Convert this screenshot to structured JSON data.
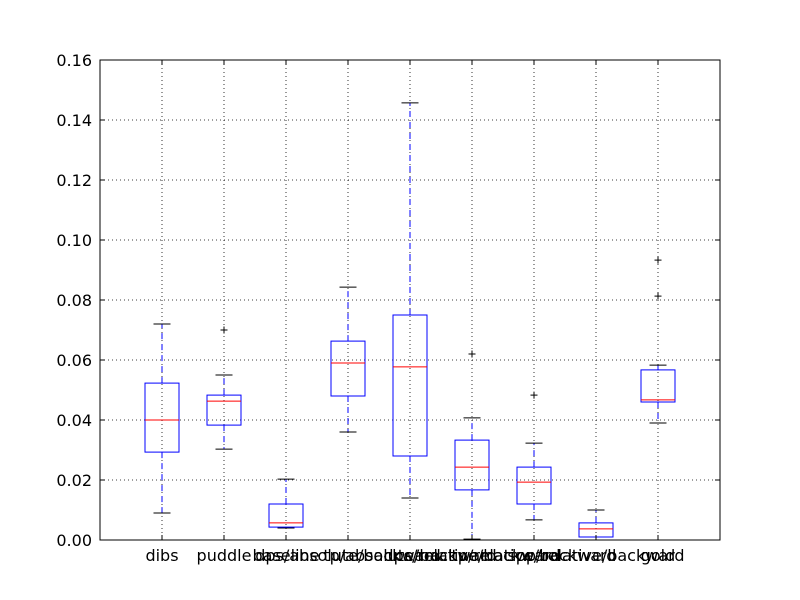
{
  "chart_data": {
    "type": "box",
    "title": "",
    "xlabel": "",
    "ylabel": "",
    "ylim": [
      0,
      0.16
    ],
    "yticks": [
      0.0,
      0.02,
      0.04,
      0.06,
      0.08,
      0.1,
      0.12,
      0.14,
      0.16
    ],
    "ytick_labels": [
      "0.00",
      "0.02",
      "0.04",
      "0.06",
      "0.08",
      "0.10",
      "0.12",
      "0.14",
      "0.16"
    ],
    "grid": true,
    "categories": [
      "dibs",
      "puddle",
      "baseline",
      "dps/absolute/backward",
      "tp/absolute/backward",
      "dps/relative/backward",
      "tp/relative/backward",
      "spp/relative/backward",
      "gold"
    ],
    "boxes": [
      {
        "whisker_low": 0.009,
        "q1": 0.0293,
        "median": 0.04,
        "q3": 0.0523,
        "whisker_high": 0.072,
        "fliers": []
      },
      {
        "whisker_low": 0.0303,
        "q1": 0.0383,
        "median": 0.0463,
        "q3": 0.0483,
        "whisker_high": 0.055,
        "fliers": [
          0.07
        ]
      },
      {
        "whisker_low": 0.004,
        "q1": 0.0043,
        "median": 0.0057,
        "q3": 0.012,
        "whisker_high": 0.0203,
        "fliers": []
      },
      {
        "whisker_low": 0.036,
        "q1": 0.048,
        "median": 0.059,
        "q3": 0.0663,
        "whisker_high": 0.0843,
        "fliers": []
      },
      {
        "whisker_low": 0.014,
        "q1": 0.028,
        "median": 0.0577,
        "q3": 0.075,
        "whisker_high": 0.1457,
        "fliers": []
      },
      {
        "whisker_low": 0.0003,
        "q1": 0.0167,
        "median": 0.0243,
        "q3": 0.0333,
        "whisker_high": 0.0407,
        "fliers": [
          0.062
        ]
      },
      {
        "whisker_low": 0.0067,
        "q1": 0.012,
        "median": 0.0193,
        "q3": 0.0243,
        "whisker_high": 0.0323,
        "fliers": [
          0.0483
        ]
      },
      {
        "whisker_low": 0.001,
        "q1": 0.001,
        "median": 0.0037,
        "q3": 0.0057,
        "whisker_high": 0.01,
        "fliers": []
      },
      {
        "whisker_low": 0.039,
        "q1": 0.046,
        "median": 0.0467,
        "q3": 0.0567,
        "whisker_high": 0.0583,
        "fliers": [
          0.0813,
          0.0933
        ]
      }
    ],
    "colors": {
      "box": "#0000ff",
      "median": "#ff0000",
      "whisker_cap": "#000000",
      "grid": "#000000"
    }
  }
}
